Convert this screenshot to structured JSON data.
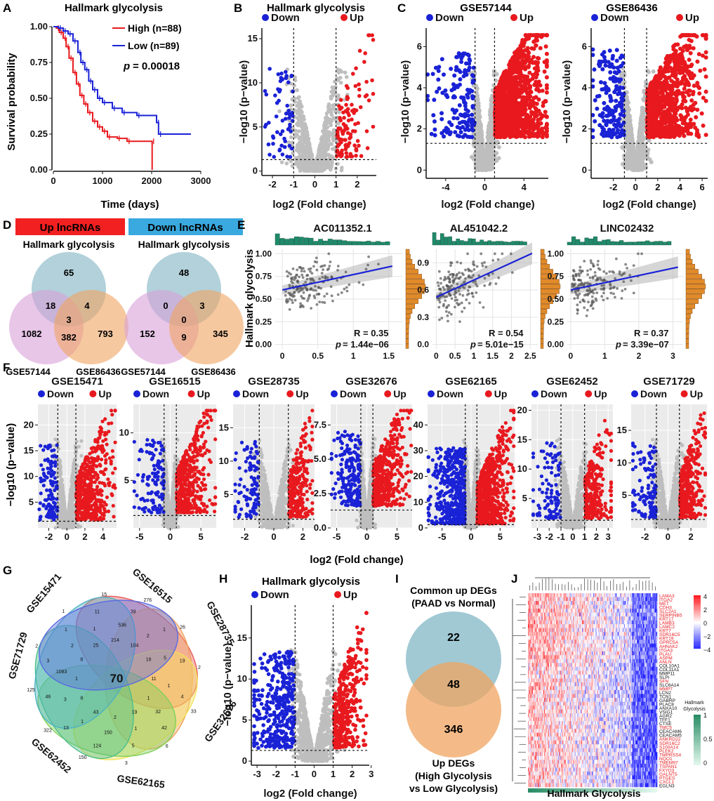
{
  "panels": {
    "A": {
      "letter": "A",
      "title": "Hallmark glycolysis",
      "ylabel": "Survival probability",
      "xlabel": "Time (days)",
      "legend": [
        {
          "label": "High (n=88)",
          "color": "#e8191e"
        },
        {
          "label": "Low (n=89)",
          "color": "#1a22d6"
        }
      ],
      "pvalue_label": "p",
      "pvalue_text": "= 0.00018"
    },
    "B": {
      "letter": "B",
      "title": "Hallmark glycolysis"
    },
    "C": {
      "letter": "C",
      "title1": "GSE57144",
      "title2": "GSE86436"
    },
    "D": {
      "letter": "D",
      "up_header": "Up lncRNAs",
      "down_header": "Down lncRNAs",
      "hallmark": "Hallmark glycolysis",
      "left_label": "GSE57144",
      "right_label": "GSE86436",
      "up": {
        "top": "65",
        "tl": "18",
        "tr": "4",
        "center": "3",
        "left": "1082",
        "bottom": "382",
        "right": "793"
      },
      "down": {
        "top": "48",
        "tl": "0",
        "tr": "3",
        "center": "0",
        "left": "152",
        "bottom": "9",
        "right": "345"
      }
    },
    "E": {
      "letter": "E",
      "ylabel": "Hallmark glycolysis"
    },
    "F": {
      "letter": "F",
      "xlabel": "log2 (Fold change)"
    },
    "G": {
      "letter": "G",
      "center": "70",
      "labels": [
        "GSE15471",
        "GSE16515",
        "GSE28735",
        "GSE32676",
        "GSE62165",
        "GSE62452",
        "GSE71729"
      ],
      "numbers": [
        "214",
        "536",
        "39",
        "276",
        "104",
        "2",
        "1",
        "26",
        "16",
        "5",
        "19",
        "2",
        "11",
        "1",
        "4",
        "33",
        "1",
        "32",
        "42",
        "6",
        "19",
        "1",
        "5",
        "3",
        "2",
        "150",
        "124",
        "150",
        "43",
        "1",
        "13",
        "322",
        "8",
        "3",
        "46",
        "125",
        "1",
        "1083",
        "3",
        "2",
        "8",
        "2",
        "1",
        "1",
        "25",
        "1",
        "11",
        "15"
      ]
    },
    "H": {
      "letter": "H",
      "title": "Hallmark glycolysis"
    },
    "I": {
      "letter": "I",
      "top_label1": "Common up DEGs",
      "top_label2": "(PAAD vs Normal)",
      "top": "22",
      "center": "48",
      "bottom": "346",
      "bottom_label1": "Up DEGs",
      "bottom_label2": "(High Glycolysis",
      "bottom_label3": "vs Low Glycolysis)"
    },
    "J": {
      "letter": "J",
      "xlabel": "Hallmark Glycolysis",
      "legend1": [
        "4",
        "2",
        "0",
        "−2",
        "−4"
      ],
      "legend2_title": "Hallmark Glycolysis",
      "legend2": [
        "1",
        "0.5",
        "0"
      ],
      "genes": [
        "LAMA3",
        "ITGA2",
        "MET",
        "CDH3",
        "SLC2A1",
        "SERPINB5",
        "KRT17",
        "LAMB3",
        "LAMC2",
        "KRT7",
        "SDR16C5",
        "KRT19",
        "GPRC5A",
        "AHNAK2",
        "ITGA3",
        "PLAU",
        "ASPM",
        "ANLN",
        "COL10A1",
        "COL11A1",
        "MMP11",
        "SLPI",
        "SFN",
        "SLC6A14",
        "MMP7",
        "LCN2",
        "TCN1",
        "GABRP",
        "PLAC8",
        "ANXA10",
        "VSIG1",
        "AGR2",
        "TFF1",
        "CTSE",
        "TMC5",
        "CEACAM6",
        "CEACAM5",
        "ANKRD22",
        "SDR16C2",
        "S100A14",
        "PLEK2",
        "TMPRSS4",
        "NQO1",
        "TMEM97",
        "TSPAN1",
        "FXYD3",
        "GALNT5",
        "PTGES",
        "CXCL1",
        "EGLN3"
      ],
      "red_genes": [
        "LAMA3",
        "ITGA2",
        "MET",
        "CDH3",
        "SLC2A1",
        "SERPINB5",
        "KRT17",
        "LAMB3",
        "LAMC2",
        "KRT7",
        "SDR16C5",
        "KRT19",
        "GPRC5A",
        "AHNAK2",
        "ITGA3",
        "PLAU",
        "ASPM",
        "ANLN",
        "SFN",
        "MMP7",
        "TMC5",
        "ANKRD22",
        "SDR16C2",
        "S100A14",
        "PLEK2",
        "TMPRSS4",
        "NQO1",
        "TMEM97",
        "TSPAN1",
        "FXYD3",
        "GALNT5",
        "PTGES",
        "CXCL1"
      ]
    }
  },
  "volcano_legend": {
    "down": "Down",
    "up": "Up",
    "down_color": "#1a22d6",
    "up_color": "#e8191e",
    "ns_color": "#bebebe"
  },
  "volcano_ylabel": "−log10 (p−value)",
  "volcano_xlabel": "log2 (Fold change)",
  "chart_data": [
    {
      "type": "line",
      "panel": "A",
      "title": "Hallmark glycolysis",
      "xlabel": "Time (days)",
      "ylabel": "Survival probability",
      "xlim": [
        0,
        3000
      ],
      "ylim": [
        0,
        1
      ],
      "xticks": [
        0,
        1000,
        2000,
        3000
      ],
      "yticks": [
        0,
        0.25,
        0.5,
        0.75,
        1.0
      ],
      "series": [
        {
          "name": "High (n=88)",
          "color": "#e8191e",
          "points": [
            [
              0,
              1
            ],
            [
              60,
              0.99
            ],
            [
              120,
              0.96
            ],
            [
              200,
              0.92
            ],
            [
              260,
              0.86
            ],
            [
              320,
              0.78
            ],
            [
              400,
              0.68
            ],
            [
              470,
              0.6
            ],
            [
              540,
              0.52
            ],
            [
              620,
              0.46
            ],
            [
              700,
              0.4
            ],
            [
              800,
              0.34
            ],
            [
              900,
              0.3
            ],
            [
              1000,
              0.27
            ],
            [
              1100,
              0.23
            ],
            [
              1300,
              0.22
            ],
            [
              1500,
              0.2
            ],
            [
              2000,
              0.2
            ],
            [
              2010,
              0.0
            ]
          ]
        },
        {
          "name": "Low (n=89)",
          "color": "#1a22d6",
          "points": [
            [
              0,
              1
            ],
            [
              100,
              0.99
            ],
            [
              200,
              0.97
            ],
            [
              300,
              0.95
            ],
            [
              400,
              0.9
            ],
            [
              500,
              0.82
            ],
            [
              560,
              0.75
            ],
            [
              640,
              0.7
            ],
            [
              720,
              0.62
            ],
            [
              800,
              0.56
            ],
            [
              900,
              0.5
            ],
            [
              1000,
              0.47
            ],
            [
              1200,
              0.43
            ],
            [
              1400,
              0.4
            ],
            [
              1700,
              0.38
            ],
            [
              2100,
              0.33
            ],
            [
              2140,
              0.25
            ],
            [
              2800,
              0.25
            ]
          ]
        }
      ],
      "annotation": "p = 0.00018"
    },
    {
      "type": "scatter",
      "panel": "B",
      "title": "Hallmark glycolysis",
      "xlim": [
        -2.5,
        2.9
      ],
      "ylim": [
        -0.5,
        16.2
      ],
      "xticks": [
        -2,
        -1,
        0,
        1,
        2
      ],
      "yticks": [
        0,
        5,
        10,
        15
      ],
      "fc_cut": 1,
      "p_cut": 1.3,
      "n_down": 60,
      "n_up": 120,
      "n_ns": 800,
      "bg": "#ffffff"
    },
    {
      "type": "scatter",
      "panel": "C1",
      "title": "GSE57144",
      "xlim": [
        -6,
        6.5
      ],
      "ylim": [
        -0.4,
        6.9
      ],
      "xticks": [
        -4,
        0,
        4
      ],
      "yticks": [
        0,
        2,
        4,
        6
      ],
      "fc_cut": 1,
      "p_cut": 1.3,
      "n_down": 150,
      "n_up": 1400,
      "n_ns": 900,
      "bg": "#ffffff"
    },
    {
      "type": "scatter",
      "panel": "C2",
      "title": "GSE86436",
      "xlim": [
        -4,
        6.5
      ],
      "ylim": [
        -0.4,
        6.9
      ],
      "xticks": [
        -2,
        0,
        2,
        4,
        6
      ],
      "yticks": [
        0,
        2,
        4,
        6
      ],
      "fc_cut": 1,
      "p_cut": 1.3,
      "n_down": 180,
      "n_up": 900,
      "n_ns": 700,
      "bg": "#ffffff"
    },
    {
      "type": "scatter",
      "panel": "E1",
      "title": "AC011352.1",
      "xlim": [
        -0.1,
        1.7
      ],
      "ylim": [
        -0.05,
        1.05
      ],
      "xticks": [
        0,
        0.5,
        1.0,
        1.5
      ],
      "yticks": [
        0,
        0.25,
        0.5,
        0.75,
        1.0
      ],
      "yticklabels": [
        "0.00",
        "0.25",
        "0.50",
        "0.75",
        "1.00"
      ],
      "R": "R = 0.35",
      "p": "= 1.44e−06",
      "fit": [
        0.6,
        0.17
      ]
    },
    {
      "type": "scatter",
      "panel": "E2",
      "title": "AL451042.2",
      "xlim": [
        -0.1,
        2.7
      ],
      "ylim": [
        -0.05,
        1.05
      ],
      "xticks": [
        0,
        0.5,
        1.0,
        1.5,
        2.0,
        2.5
      ],
      "yticks": [
        0,
        0.3,
        0.6,
        0.9
      ],
      "yticklabels": [
        "0.0",
        "0.3",
        "0.6",
        "0.9"
      ],
      "R": "R = 0.54",
      "p": "= 5.01e−15",
      "fit": [
        0.52,
        0.19
      ]
    },
    {
      "type": "scatter",
      "panel": "E3",
      "title": "LINC02432",
      "xlim": [
        -0.1,
        3.3
      ],
      "ylim": [
        -0.05,
        1.05
      ],
      "xticks": [
        0,
        1,
        2,
        3
      ],
      "yticks": [
        0,
        0.25,
        0.5,
        0.75,
        1.0
      ],
      "yticklabels": [
        "0.00",
        "0.25",
        "0.50",
        "0.75",
        "1.00"
      ],
      "R": "R = 0.37",
      "p": "= 3.39e−07",
      "fit": [
        0.6,
        0.08
      ]
    },
    {
      "type": "scatter",
      "panel": "F1",
      "title": "GSE15471",
      "xlim": [
        -3.2,
        5.5
      ],
      "ylim": [
        0,
        24
      ],
      "xticks": [
        -2,
        0,
        2,
        4
      ],
      "yticks": [
        5,
        10,
        15,
        20
      ],
      "fc_cut": 1,
      "p_cut": 1.3,
      "n_down": 120,
      "n_up": 500,
      "n_ns": 900,
      "bg": "#ebebeb"
    },
    {
      "type": "scatter",
      "panel": "F2",
      "title": "GSE16515",
      "xlim": [
        -6,
        7.5
      ],
      "ylim": [
        0,
        13
      ],
      "xticks": [
        -5,
        0,
        5
      ],
      "yticks": [
        5,
        10
      ],
      "fc_cut": 1,
      "p_cut": 1.3,
      "n_down": 120,
      "n_up": 450,
      "n_ns": 900,
      "bg": "#ebebeb"
    },
    {
      "type": "scatter",
      "panel": "F3",
      "title": "GSE28735",
      "xlim": [
        -2.8,
        2.8
      ],
      "ylim": [
        0,
        18.5
      ],
      "xticks": [
        -2,
        0,
        2
      ],
      "yticks": [
        5,
        10,
        15
      ],
      "fc_cut": 1,
      "p_cut": 1.3,
      "n_down": 110,
      "n_up": 260,
      "n_ns": 900,
      "bg": "#ebebeb"
    },
    {
      "type": "scatter",
      "panel": "F4",
      "title": "GSE32676",
      "xlim": [
        -6,
        7.5
      ],
      "ylim": [
        0,
        9
      ],
      "xticks": [
        -5,
        0,
        5
      ],
      "yticks": [
        0,
        2.5,
        5,
        7.5
      ],
      "yticklabels": [
        "0.0",
        "2.5",
        "5.0",
        "7.5"
      ],
      "fc_cut": 1,
      "p_cut": 1.3,
      "n_down": 200,
      "n_up": 480,
      "n_ns": 900,
      "bg": "#ebebeb"
    },
    {
      "type": "scatter",
      "panel": "F5",
      "title": "GSE62165",
      "xlim": [
        -7.5,
        7.5
      ],
      "ylim": [
        0,
        48
      ],
      "xticks": [
        -5,
        0,
        5
      ],
      "yticks": [
        0,
        10,
        20,
        30,
        40
      ],
      "fc_cut": 1,
      "p_cut": 1.3,
      "n_down": 450,
      "n_up": 700,
      "n_ns": 900,
      "bg": "#ebebeb"
    },
    {
      "type": "scatter",
      "panel": "F6",
      "title": "GSE62452",
      "xlim": [
        -3.5,
        3.4
      ],
      "ylim": [
        0,
        21
      ],
      "xticks": [
        -3,
        -2,
        -1,
        0,
        1,
        2,
        3
      ],
      "yticks": [
        5,
        10,
        15,
        20
      ],
      "fc_cut": 1,
      "p_cut": 1.3,
      "n_down": 100,
      "n_up": 260,
      "n_ns": 900,
      "bg": "#ebebeb"
    },
    {
      "type": "scatter",
      "panel": "F7",
      "title": "GSE71729",
      "xlim": [
        -3.2,
        3.4
      ],
      "ylim": [
        0,
        19
      ],
      "xticks": [
        -2,
        0,
        2
      ],
      "yticks": [
        5,
        10,
        15
      ],
      "fc_cut": 1,
      "p_cut": 1.3,
      "n_down": 130,
      "n_up": 350,
      "n_ns": 900,
      "bg": "#ebebeb"
    },
    {
      "type": "scatter",
      "panel": "H",
      "title": "Hallmark glycolysis",
      "xlim": [
        -3.3,
        2.9
      ],
      "ylim": [
        -0.5,
        19
      ],
      "xticks": [
        -3,
        -2,
        -1,
        0,
        1,
        2,
        3
      ],
      "yticks": [
        0,
        5,
        10,
        15
      ],
      "fc_cut": 1,
      "p_cut": 1.3,
      "n_down": 350,
      "n_up": 350,
      "n_ns": 1000,
      "bg": "#ffffff"
    },
    {
      "type": "heatmap",
      "panel": "J",
      "rows": 50,
      "cols": 160,
      "scale": [
        -4,
        4
      ],
      "colors": [
        "#1f1fd6",
        "#ffffff",
        "#e8191e"
      ]
    }
  ]
}
